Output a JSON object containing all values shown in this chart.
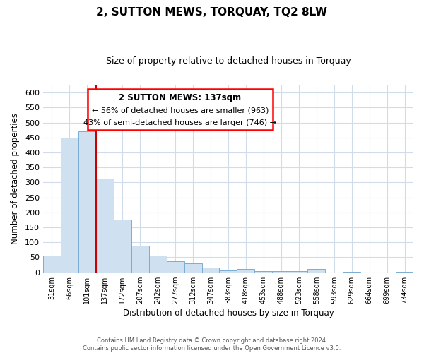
{
  "title": "2, SUTTON MEWS, TORQUAY, TQ2 8LW",
  "subtitle": "Size of property relative to detached houses in Torquay",
  "xlabel": "Distribution of detached houses by size in Torquay",
  "ylabel": "Number of detached properties",
  "bar_labels": [
    "31sqm",
    "66sqm",
    "101sqm",
    "137sqm",
    "172sqm",
    "207sqm",
    "242sqm",
    "277sqm",
    "312sqm",
    "347sqm",
    "383sqm",
    "418sqm",
    "453sqm",
    "488sqm",
    "523sqm",
    "558sqm",
    "593sqm",
    "629sqm",
    "664sqm",
    "699sqm",
    "734sqm"
  ],
  "bar_values": [
    55,
    450,
    470,
    312,
    175,
    90,
    57,
    38,
    30,
    15,
    7,
    10,
    3,
    5,
    3,
    10,
    0,
    2,
    0,
    0,
    2
  ],
  "bar_color": "#cfe0f0",
  "bar_edge_color": "#7aadd4",
  "vline_color": "#cc0000",
  "ylim": [
    0,
    625
  ],
  "yticks": [
    0,
    50,
    100,
    150,
    200,
    250,
    300,
    350,
    400,
    450,
    500,
    550,
    600
  ],
  "annotation_title": "2 SUTTON MEWS: 137sqm",
  "annotation_line1": "← 56% of detached houses are smaller (963)",
  "annotation_line2": "43% of semi-detached houses are larger (746) →",
  "footer1": "Contains HM Land Registry data © Crown copyright and database right 2024.",
  "footer2": "Contains public sector information licensed under the Open Government Licence v3.0.",
  "bg_color": "#ffffff",
  "grid_color": "#d0dcea"
}
